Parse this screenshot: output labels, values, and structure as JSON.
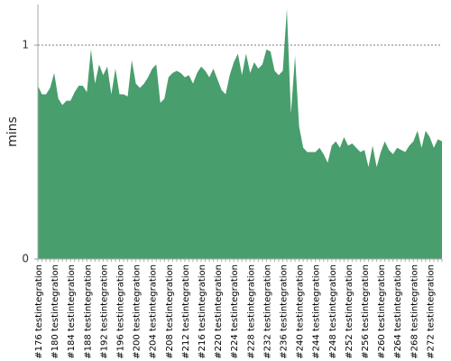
{
  "chart_data": {
    "type": "area",
    "y_label": "mins",
    "color": "#489e6d",
    "categories": [
      "#176 testintegration",
      null,
      null,
      null,
      "#180 testintegration",
      null,
      null,
      null,
      "#184 testintegration",
      null,
      null,
      null,
      "#188 testintegration",
      null,
      null,
      null,
      "#192 testintegration",
      null,
      null,
      null,
      "#196 testintegration",
      null,
      null,
      null,
      "#200 testintegration",
      null,
      null,
      null,
      "#204 testintegration",
      null,
      null,
      null,
      "#208 testintegration",
      null,
      null,
      null,
      "#212 testintegration",
      null,
      null,
      null,
      "#216 testintegration",
      null,
      null,
      null,
      "#220 testintegration",
      null,
      null,
      null,
      "#224 testintegration",
      null,
      null,
      null,
      "#228 testintegration",
      null,
      null,
      null,
      "#232 testintegration",
      null,
      null,
      null,
      "#236 testintegration",
      null,
      null,
      null,
      "#240 testintegration",
      null,
      null,
      null,
      "#244 testintegration",
      null,
      null,
      null,
      "#248 testintegration",
      null,
      null,
      null,
      "#252 testintegration",
      null,
      null,
      null,
      "#256 testintegration",
      null,
      null,
      null,
      "#260 testintegration",
      null,
      null,
      null,
      "#264 testintegration",
      null,
      null,
      null,
      "#268 testintegration",
      null,
      null,
      null,
      "#272 testintegration",
      null,
      null,
      null
    ],
    "values": [
      0.81,
      0.77,
      0.77,
      0.8,
      0.87,
      0.75,
      0.72,
      0.74,
      0.74,
      0.78,
      0.81,
      0.81,
      0.78,
      0.98,
      0.82,
      0.91,
      0.86,
      0.9,
      0.77,
      0.89,
      0.77,
      0.77,
      0.76,
      0.93,
      0.82,
      0.8,
      0.82,
      0.85,
      0.89,
      0.91,
      0.73,
      0.75,
      0.85,
      0.87,
      0.88,
      0.87,
      0.85,
      0.86,
      0.82,
      0.87,
      0.9,
      0.88,
      0.85,
      0.89,
      0.84,
      0.79,
      0.77,
      0.86,
      0.92,
      0.96,
      0.86,
      0.96,
      0.87,
      0.92,
      0.89,
      0.91,
      0.98,
      0.97,
      0.88,
      0.86,
      0.88,
      1.17,
      0.68,
      0.95,
      0.62,
      0.52,
      0.5,
      0.5,
      0.5,
      0.52,
      0.49,
      0.45,
      0.53,
      0.55,
      0.52,
      0.57,
      0.53,
      0.54,
      0.52,
      0.5,
      0.51,
      0.43,
      0.53,
      0.43,
      0.5,
      0.55,
      0.51,
      0.49,
      0.52,
      0.51,
      0.5,
      0.53,
      0.55,
      0.6,
      0.52,
      0.6,
      0.57,
      0.52,
      0.56,
      0.55
    ],
    "ylim": [
      0,
      1.19
    ],
    "yticks": [
      0,
      1
    ],
    "grid": true
  }
}
